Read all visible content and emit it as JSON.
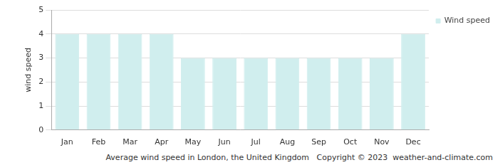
{
  "chart_data": {
    "type": "bar",
    "title": "Average wind speed in London, the United Kingdom",
    "subtitle": "Copyright © 2023  weather-and-climate.com",
    "y_label": "wind speed",
    "categories": [
      "Jan",
      "Feb",
      "Mar",
      "Apr",
      "May",
      "Jun",
      "Jul",
      "Aug",
      "Sep",
      "Oct",
      "Nov",
      "Dec"
    ],
    "series": [
      {
        "name": "Wind speed",
        "color": "#d0eeee",
        "values": [
          4,
          4,
          4,
          4,
          3,
          3,
          3,
          3,
          3,
          3,
          3,
          4
        ]
      }
    ],
    "ylim": [
      0,
      5
    ],
    "yticks": [
      0,
      1,
      2,
      3,
      4,
      5
    ],
    "grid": true,
    "legend": "right"
  }
}
